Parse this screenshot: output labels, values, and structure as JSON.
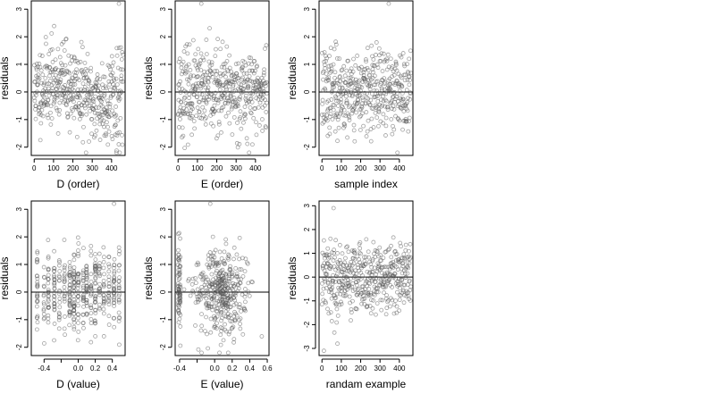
{
  "chart_data": [
    {
      "type": "scatter",
      "panel": "top-left",
      "xlabel": "D (order)",
      "ylabel": "residuals",
      "xlim": [
        -15,
        470
      ],
      "ylim": [
        -2.3,
        3.3
      ],
      "xticks": [
        0,
        100,
        200,
        300,
        400
      ],
      "yticks": [
        -2,
        -1,
        0,
        1,
        2,
        3
      ],
      "hline": 0,
      "x_generator": "order",
      "pattern": "trend",
      "n": 460,
      "seed": 11,
      "highlights": [
        {
          "x": 438,
          "y": 3.2
        }
      ]
    },
    {
      "type": "scatter",
      "panel": "top-middle",
      "xlabel": "E (order)",
      "ylabel": "residuals",
      "xlim": [
        -15,
        470
      ],
      "ylim": [
        -2.3,
        3.3
      ],
      "xticks": [
        0,
        100,
        200,
        300,
        400
      ],
      "yticks": [
        -2,
        -1,
        0,
        1,
        2,
        3
      ],
      "hline": 0,
      "x_generator": "order",
      "pattern": "noise",
      "n": 460,
      "seed": 23,
      "highlights": [
        {
          "x": 120,
          "y": 3.2
        }
      ]
    },
    {
      "type": "scatter",
      "panel": "top-right",
      "xlabel": "sample index",
      "ylabel": "residuals",
      "xlim": [
        -15,
        470
      ],
      "ylim": [
        -2.3,
        3.3
      ],
      "xticks": [
        0,
        100,
        200,
        300,
        400
      ],
      "yticks": [
        -2,
        -1,
        0,
        1,
        2,
        3
      ],
      "hline": 0,
      "x_generator": "order",
      "pattern": "noise",
      "n": 460,
      "seed": 37,
      "highlights": [
        {
          "x": 345,
          "y": 3.2
        }
      ]
    },
    {
      "type": "scatter",
      "panel": "bottom-left",
      "xlabel": "D (value)",
      "ylabel": "residuals",
      "xlim": [
        -0.55,
        0.55
      ],
      "ylim": [
        -2.3,
        3.3
      ],
      "xticks": [
        -0.4,
        -0.2,
        0.0,
        0.2,
        0.4
      ],
      "xtick_labels": [
        "-0.4",
        "",
        "0.0",
        "0.2",
        "0.4"
      ],
      "yticks": [
        -2,
        -1,
        0,
        1,
        2,
        3
      ],
      "hline": 0,
      "x_generator": "discrete",
      "x_levels": [
        -0.48,
        -0.4,
        -0.35,
        -0.28,
        -0.22,
        -0.16,
        -0.1,
        -0.05,
        0.0,
        0.06,
        0.1,
        0.15,
        0.2,
        0.25,
        0.3,
        0.36,
        0.42,
        0.48
      ],
      "pattern": "noise",
      "n": 460,
      "seed": 51,
      "highlights": [
        {
          "x": 0.42,
          "y": 3.2
        }
      ]
    },
    {
      "type": "scatter",
      "panel": "bottom-middle",
      "xlabel": "E (value)",
      "ylabel": "residuals",
      "xlim": [
        -0.45,
        0.62
      ],
      "ylim": [
        -2.3,
        3.3
      ],
      "xticks": [
        -0.4,
        -0.2,
        0.0,
        0.2,
        0.4,
        0.6
      ],
      "xtick_labels": [
        "-0.4",
        "",
        "0.0",
        "0.2",
        "0.4",
        "0.6"
      ],
      "yticks": [
        -2,
        -1,
        0,
        1,
        2,
        3
      ],
      "hline": 0,
      "x_generator": "cluster",
      "pattern": "noise",
      "n": 460,
      "seed": 67,
      "highlights": [
        {
          "x": -0.05,
          "y": 3.2
        }
      ]
    },
    {
      "type": "scatter",
      "panel": "bottom-right",
      "xlabel": "randam example",
      "ylabel": "residuals",
      "xlim": [
        -15,
        470
      ],
      "ylim": [
        -3.3,
        3.2
      ],
      "xticks": [
        0,
        100,
        200,
        300,
        400
      ],
      "yticks": [
        -3,
        -2,
        -1,
        0,
        1,
        2,
        3
      ],
      "hline": 0,
      "x_generator": "order",
      "pattern": "noise",
      "n": 460,
      "seed": 79,
      "highlights": [
        {
          "x": 60,
          "y": 2.9
        },
        {
          "x": 80,
          "y": -2.8
        },
        {
          "x": 10,
          "y": -3.1
        }
      ]
    }
  ]
}
